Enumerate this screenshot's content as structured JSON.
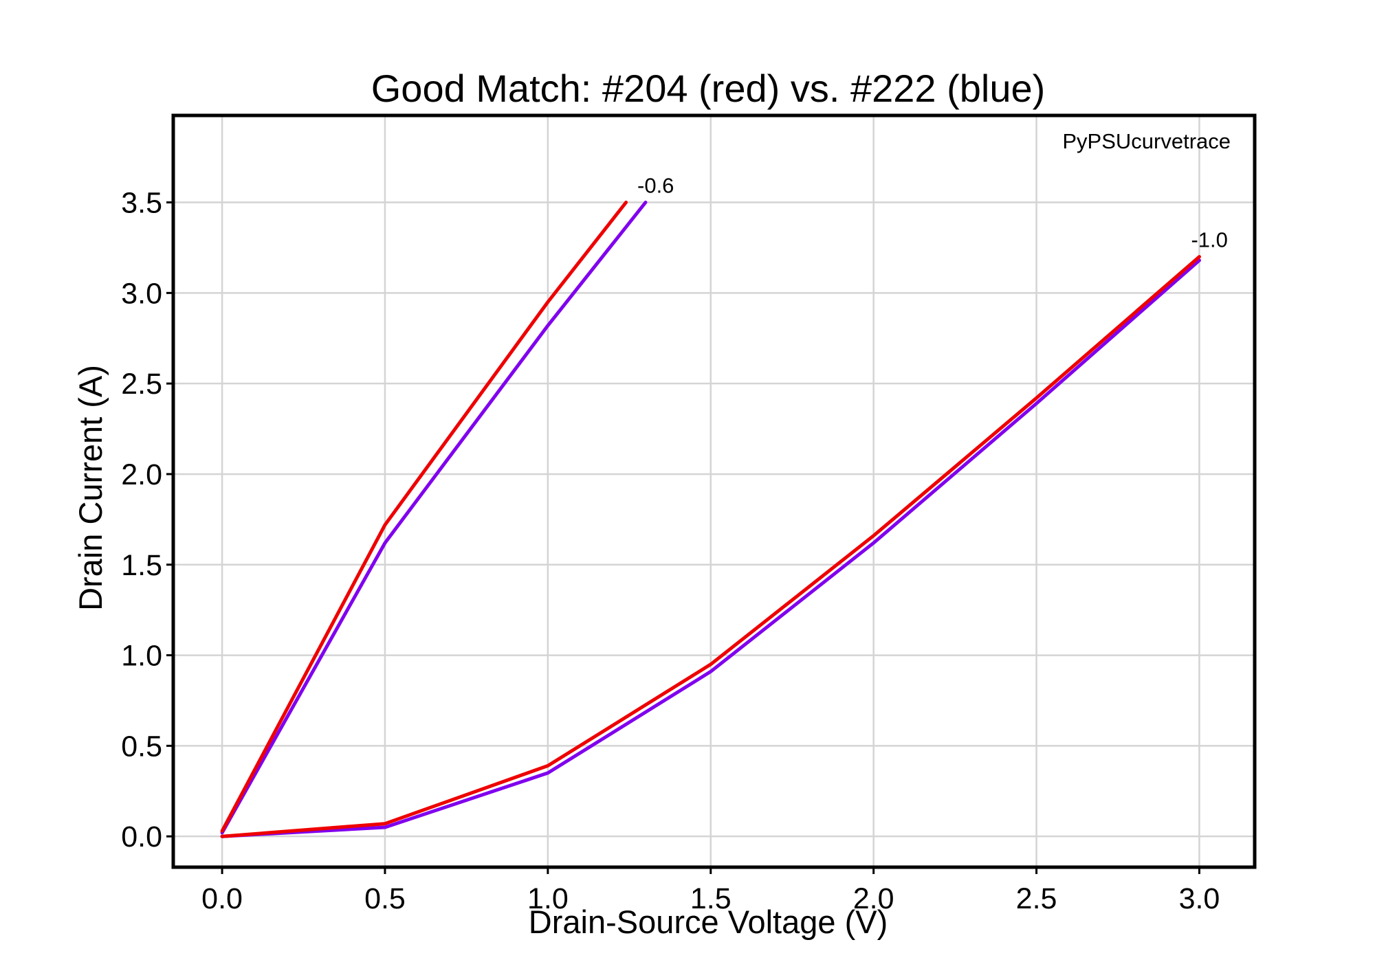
{
  "chart_data": {
    "type": "line",
    "title": "Good Match: #204 (red) vs. #222 (blue)",
    "xlabel": "Drain-Source Voltage (V)",
    "ylabel": "Drain Current (A)",
    "xlim": [
      -0.15,
      3.17
    ],
    "ylim": [
      -0.17,
      3.98
    ],
    "xticks": [
      0.0,
      0.5,
      1.0,
      1.5,
      2.0,
      2.5,
      3.0
    ],
    "xtick_labels": [
      "0.0",
      "0.5",
      "1.0",
      "1.5",
      "2.0",
      "2.5",
      "3.0"
    ],
    "yticks": [
      0.0,
      0.5,
      1.0,
      1.5,
      2.0,
      2.5,
      3.0,
      3.5
    ],
    "ytick_labels": [
      "0.0",
      "0.5",
      "1.0",
      "1.5",
      "2.0",
      "2.5",
      "3.0",
      "3.5"
    ],
    "grid": true,
    "watermark": "PyPSUcurvetrace",
    "series": [
      {
        "color": "#8000ee",
        "curve": "-0.6",
        "x": [
          0.0,
          0.5,
          1.0,
          1.3
        ],
        "y": [
          0.02,
          1.62,
          2.82,
          3.5
        ]
      },
      {
        "color": "#ee0000",
        "curve": "-0.6",
        "x": [
          0.0,
          0.5,
          1.0,
          1.24
        ],
        "y": [
          0.03,
          1.72,
          2.95,
          3.5
        ]
      },
      {
        "color": "#8000ee",
        "curve": "-1.0",
        "x": [
          0.0,
          0.5,
          1.0,
          1.5,
          2.0,
          2.5,
          3.0
        ],
        "y": [
          0.0,
          0.05,
          0.35,
          0.91,
          1.62,
          2.39,
          3.18
        ]
      },
      {
        "color": "#ee0000",
        "curve": "-1.0",
        "x": [
          0.0,
          0.5,
          1.0,
          1.5,
          2.0,
          2.5,
          3.0
        ],
        "y": [
          0.0,
          0.07,
          0.39,
          0.95,
          1.66,
          2.42,
          3.2
        ]
      }
    ],
    "curve_labels": [
      {
        "text": "-0.6",
        "x": 1.3,
        "y": 3.5
      },
      {
        "text": "-1.0",
        "x": 3.0,
        "y": 3.2
      }
    ]
  }
}
